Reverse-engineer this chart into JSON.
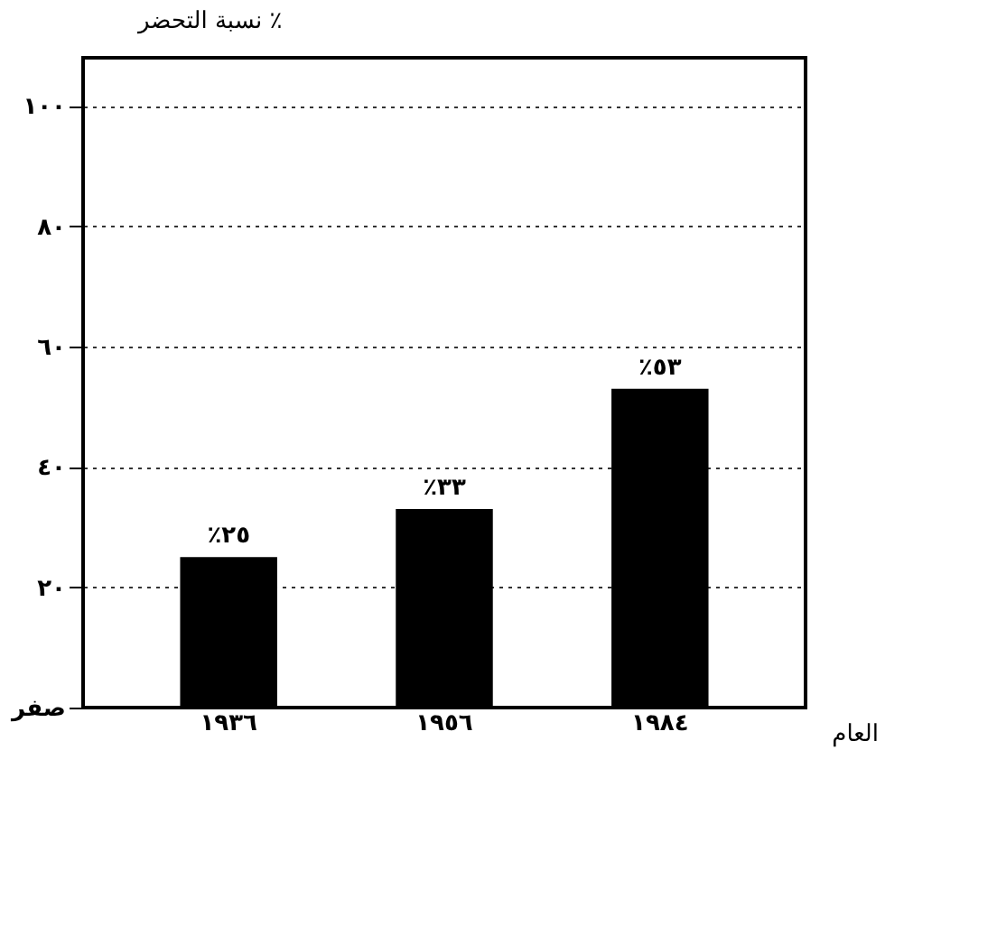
{
  "chart_data": {
    "type": "bar",
    "xlabel": "العام",
    "ylabel": "نسبة التحضر ٪",
    "categories": [
      "١٩٣٦",
      "١٩٥٦",
      "١٩٨٤"
    ],
    "values": [
      25,
      33,
      53
    ],
    "color": "#000000",
    "value_labels": [
      "٪٢٥",
      "٪٣٣",
      "٪٥٣"
    ],
    "ylim": [
      0,
      108
    ],
    "yticks": [
      {
        "value": 0,
        "label": "صفر"
      },
      {
        "value": 20,
        "label": "٢٠"
      },
      {
        "value": 40,
        "label": "٤٠"
      },
      {
        "value": 60,
        "label": "٦٠"
      },
      {
        "value": 80,
        "label": "٨٠"
      },
      {
        "value": 100,
        "label": "١٠٠"
      }
    ],
    "grid": "y",
    "line_style": "dotted"
  }
}
